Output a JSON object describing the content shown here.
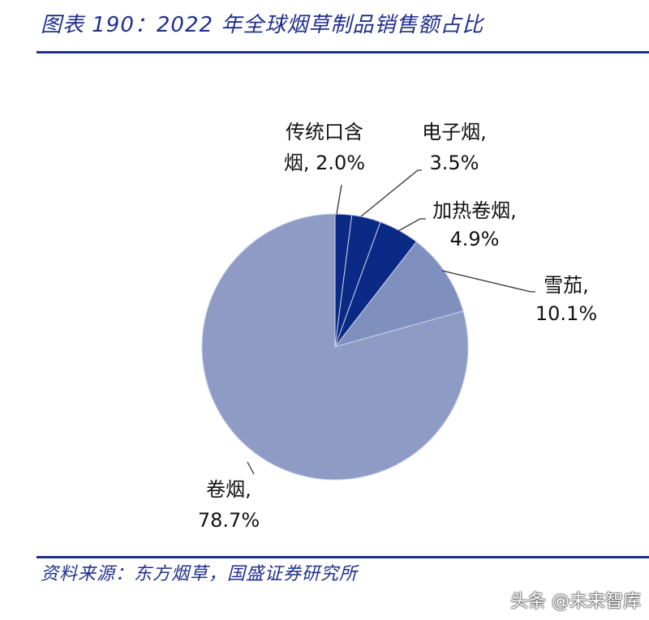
{
  "title": "图表 190：2022 年全球烟草制品销售额占比",
  "source": "资料来源：东方烟草，国盛证券研究所",
  "watermark": "头条 @未来智库",
  "chart_data": {
    "type": "pie",
    "start_angle_deg": 0,
    "direction": "clockwise",
    "slices": [
      {
        "label_lines": [
          "传统口含",
          "烟, 2.0%"
        ],
        "value": 2.0,
        "color": "#0a2a85"
      },
      {
        "label_lines": [
          "电子烟,",
          "3.5%"
        ],
        "value": 3.5,
        "color": "#0a2a85"
      },
      {
        "label_lines": [
          "加热卷烟,",
          "4.9%"
        ],
        "value": 4.9,
        "color": "#0a2a85"
      },
      {
        "label_lines": [
          "雪茄,",
          "10.1%"
        ],
        "value": 10.1,
        "color": "#7f8fbe"
      },
      {
        "label_lines": [
          "卷烟,",
          "78.7%"
        ],
        "value": 78.7,
        "color": "#8d9bc5"
      }
    ]
  }
}
